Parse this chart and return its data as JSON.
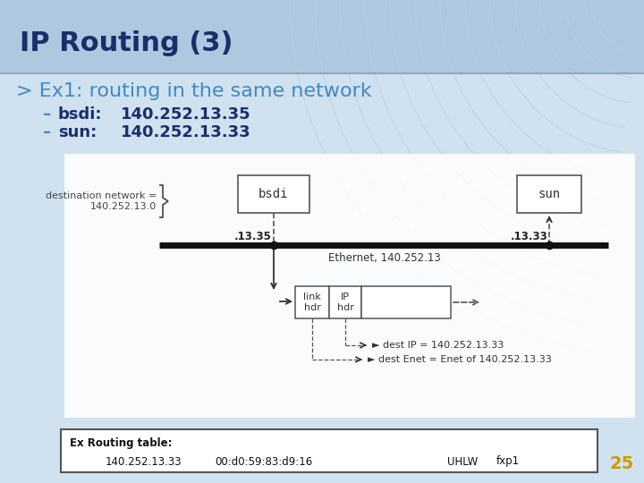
{
  "title": "IP Routing (3)",
  "subtitle": "> Ex1: routing in the same network",
  "bullet1_dash": "–",
  "bullet1_label": "bsdi:",
  "bullet1_value": "140.252.13.35",
  "bullet2_dash": "–",
  "bullet2_label": "sun:",
  "bullet2_value": "140.252.13.33",
  "title_color": "#1a2e6b",
  "subtitle_color": "#4488bb",
  "bullet_dash_color": "#4488bb",
  "bullet_label_color": "#1a2e6b",
  "bullet_value_color": "#1a2e6b",
  "dest_network_text": "destination network =\n140.252.13.0",
  "bsdi_label": "bsdi",
  "sun_label": "sun",
  "ethernet_label": "Ethernet, 140.252.13",
  "bsdi_addr": ".13.35",
  "sun_addr": ".13.33",
  "packet_link": "link\nhdr",
  "packet_ip": "IP\nhdr",
  "dest_ip_text": "► dest IP = 140.252.13.33",
  "dest_enet_text": "► dest Enet = Enet of 140.252.13.33",
  "footer_border_color": "#555555",
  "footer_bg": "#ffffff",
  "footer_label": "Ex Routing table:",
  "footer_col1": "140.252.13.33",
  "footer_col2": "00:d0:59:83:d9:16",
  "footer_col3": "UHLW",
  "footer_col4": "fxp1",
  "footer_page": "25",
  "footer_page_color": "#cc9900"
}
